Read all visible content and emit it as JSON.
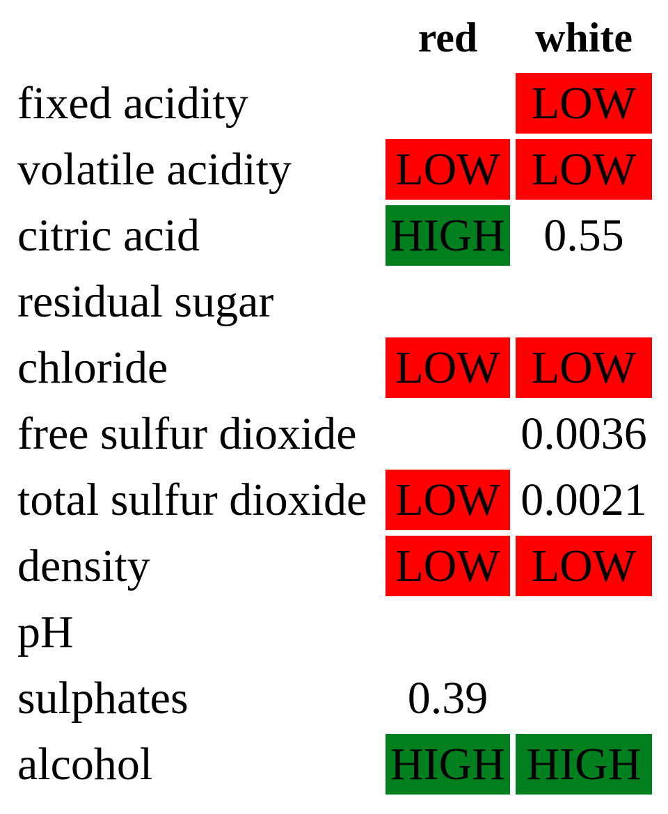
{
  "columns": [
    "red",
    "white"
  ],
  "rows": [
    {
      "label": "fixed acidity",
      "red": "",
      "white": "LOW"
    },
    {
      "label": "volatile acidity",
      "red": "LOW",
      "white": "LOW"
    },
    {
      "label": "citric acid",
      "red": "HIGH",
      "white": "0.55"
    },
    {
      "label": "residual sugar",
      "red": "",
      "white": ""
    },
    {
      "label": "chloride",
      "red": "LOW",
      "white": "LOW"
    },
    {
      "label": "free sulfur dioxide",
      "red": "",
      "white": "0.0036"
    },
    {
      "label": "total sulfur dioxide",
      "red": "LOW",
      "white": "0.0021"
    },
    {
      "label": "density",
      "red": "LOW",
      "white": "LOW"
    },
    {
      "label": "pH",
      "red": "",
      "white": ""
    },
    {
      "label": "sulphates",
      "red": "0.39",
      "white": ""
    },
    {
      "label": "alcohol",
      "red": "HIGH",
      "white": "HIGH"
    }
  ],
  "colors": {
    "low": "#ff0000",
    "high": "#007f1f"
  }
}
